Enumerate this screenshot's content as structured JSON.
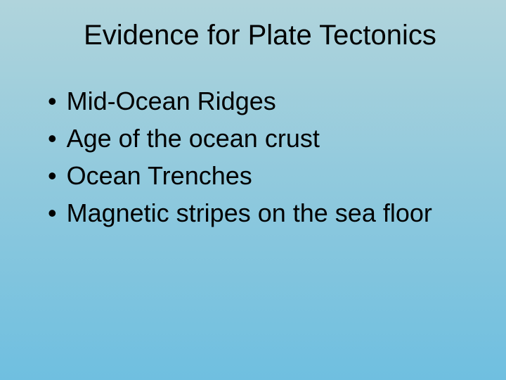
{
  "slide": {
    "title": "Evidence for Plate Tectonics",
    "bullets": [
      "Mid-Ocean Ridges",
      "Age of the ocean crust",
      "Ocean Trenches",
      "Magnetic stripes on the sea floor"
    ],
    "background_gradient": {
      "top": "#b0d4dc",
      "middle": "#8fc9dd",
      "bottom": "#6fbfe0"
    },
    "title_fontsize": 40,
    "bullet_fontsize": 36,
    "text_color": "#000000",
    "font_family": "Arial"
  }
}
